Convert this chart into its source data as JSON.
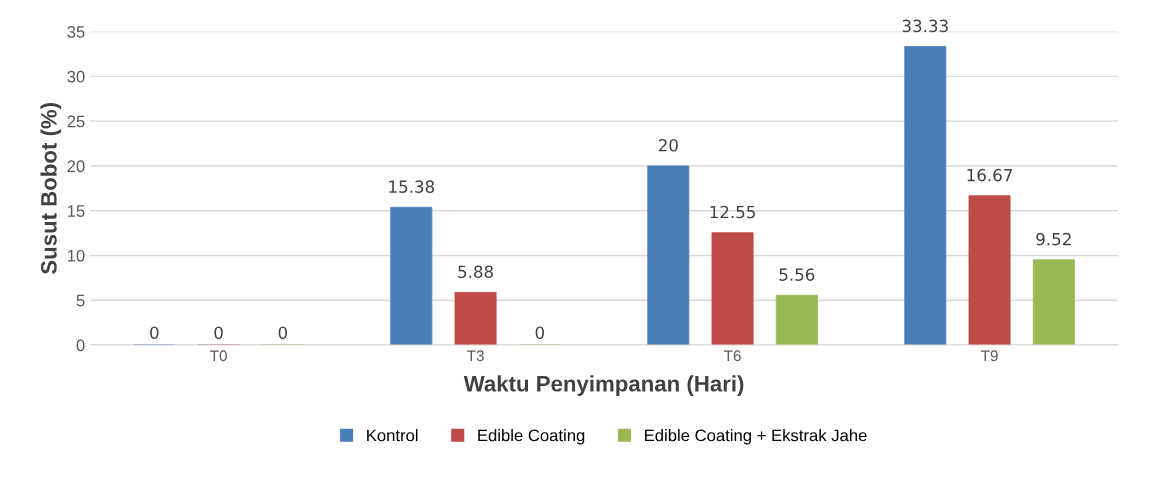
{
  "chart_data": {
    "type": "bar",
    "xlabel": "Waktu Penyimpanan (Hari)",
    "ylabel": "Susut Bobot (%)",
    "categories": [
      "T0",
      "T3",
      "T6",
      "T9"
    ],
    "series": [
      {
        "name": "Kontrol",
        "color": "#4a7ebb",
        "values": [
          0,
          15.38,
          20,
          33.33
        ]
      },
      {
        "name": "Edible Coating",
        "color": "#be4b48",
        "values": [
          0,
          5.88,
          12.55,
          16.67
        ]
      },
      {
        "name": "Edible Coating + Ekstrak Jahe",
        "color": "#98b954",
        "values": [
          0,
          0,
          5.56,
          9.52
        ]
      }
    ],
    "ylim": [
      0,
      35
    ],
    "yticks": [
      0,
      5,
      10,
      15,
      20,
      25,
      30,
      35
    ],
    "grid": "y",
    "legend": "bottom",
    "data_labels": true
  }
}
